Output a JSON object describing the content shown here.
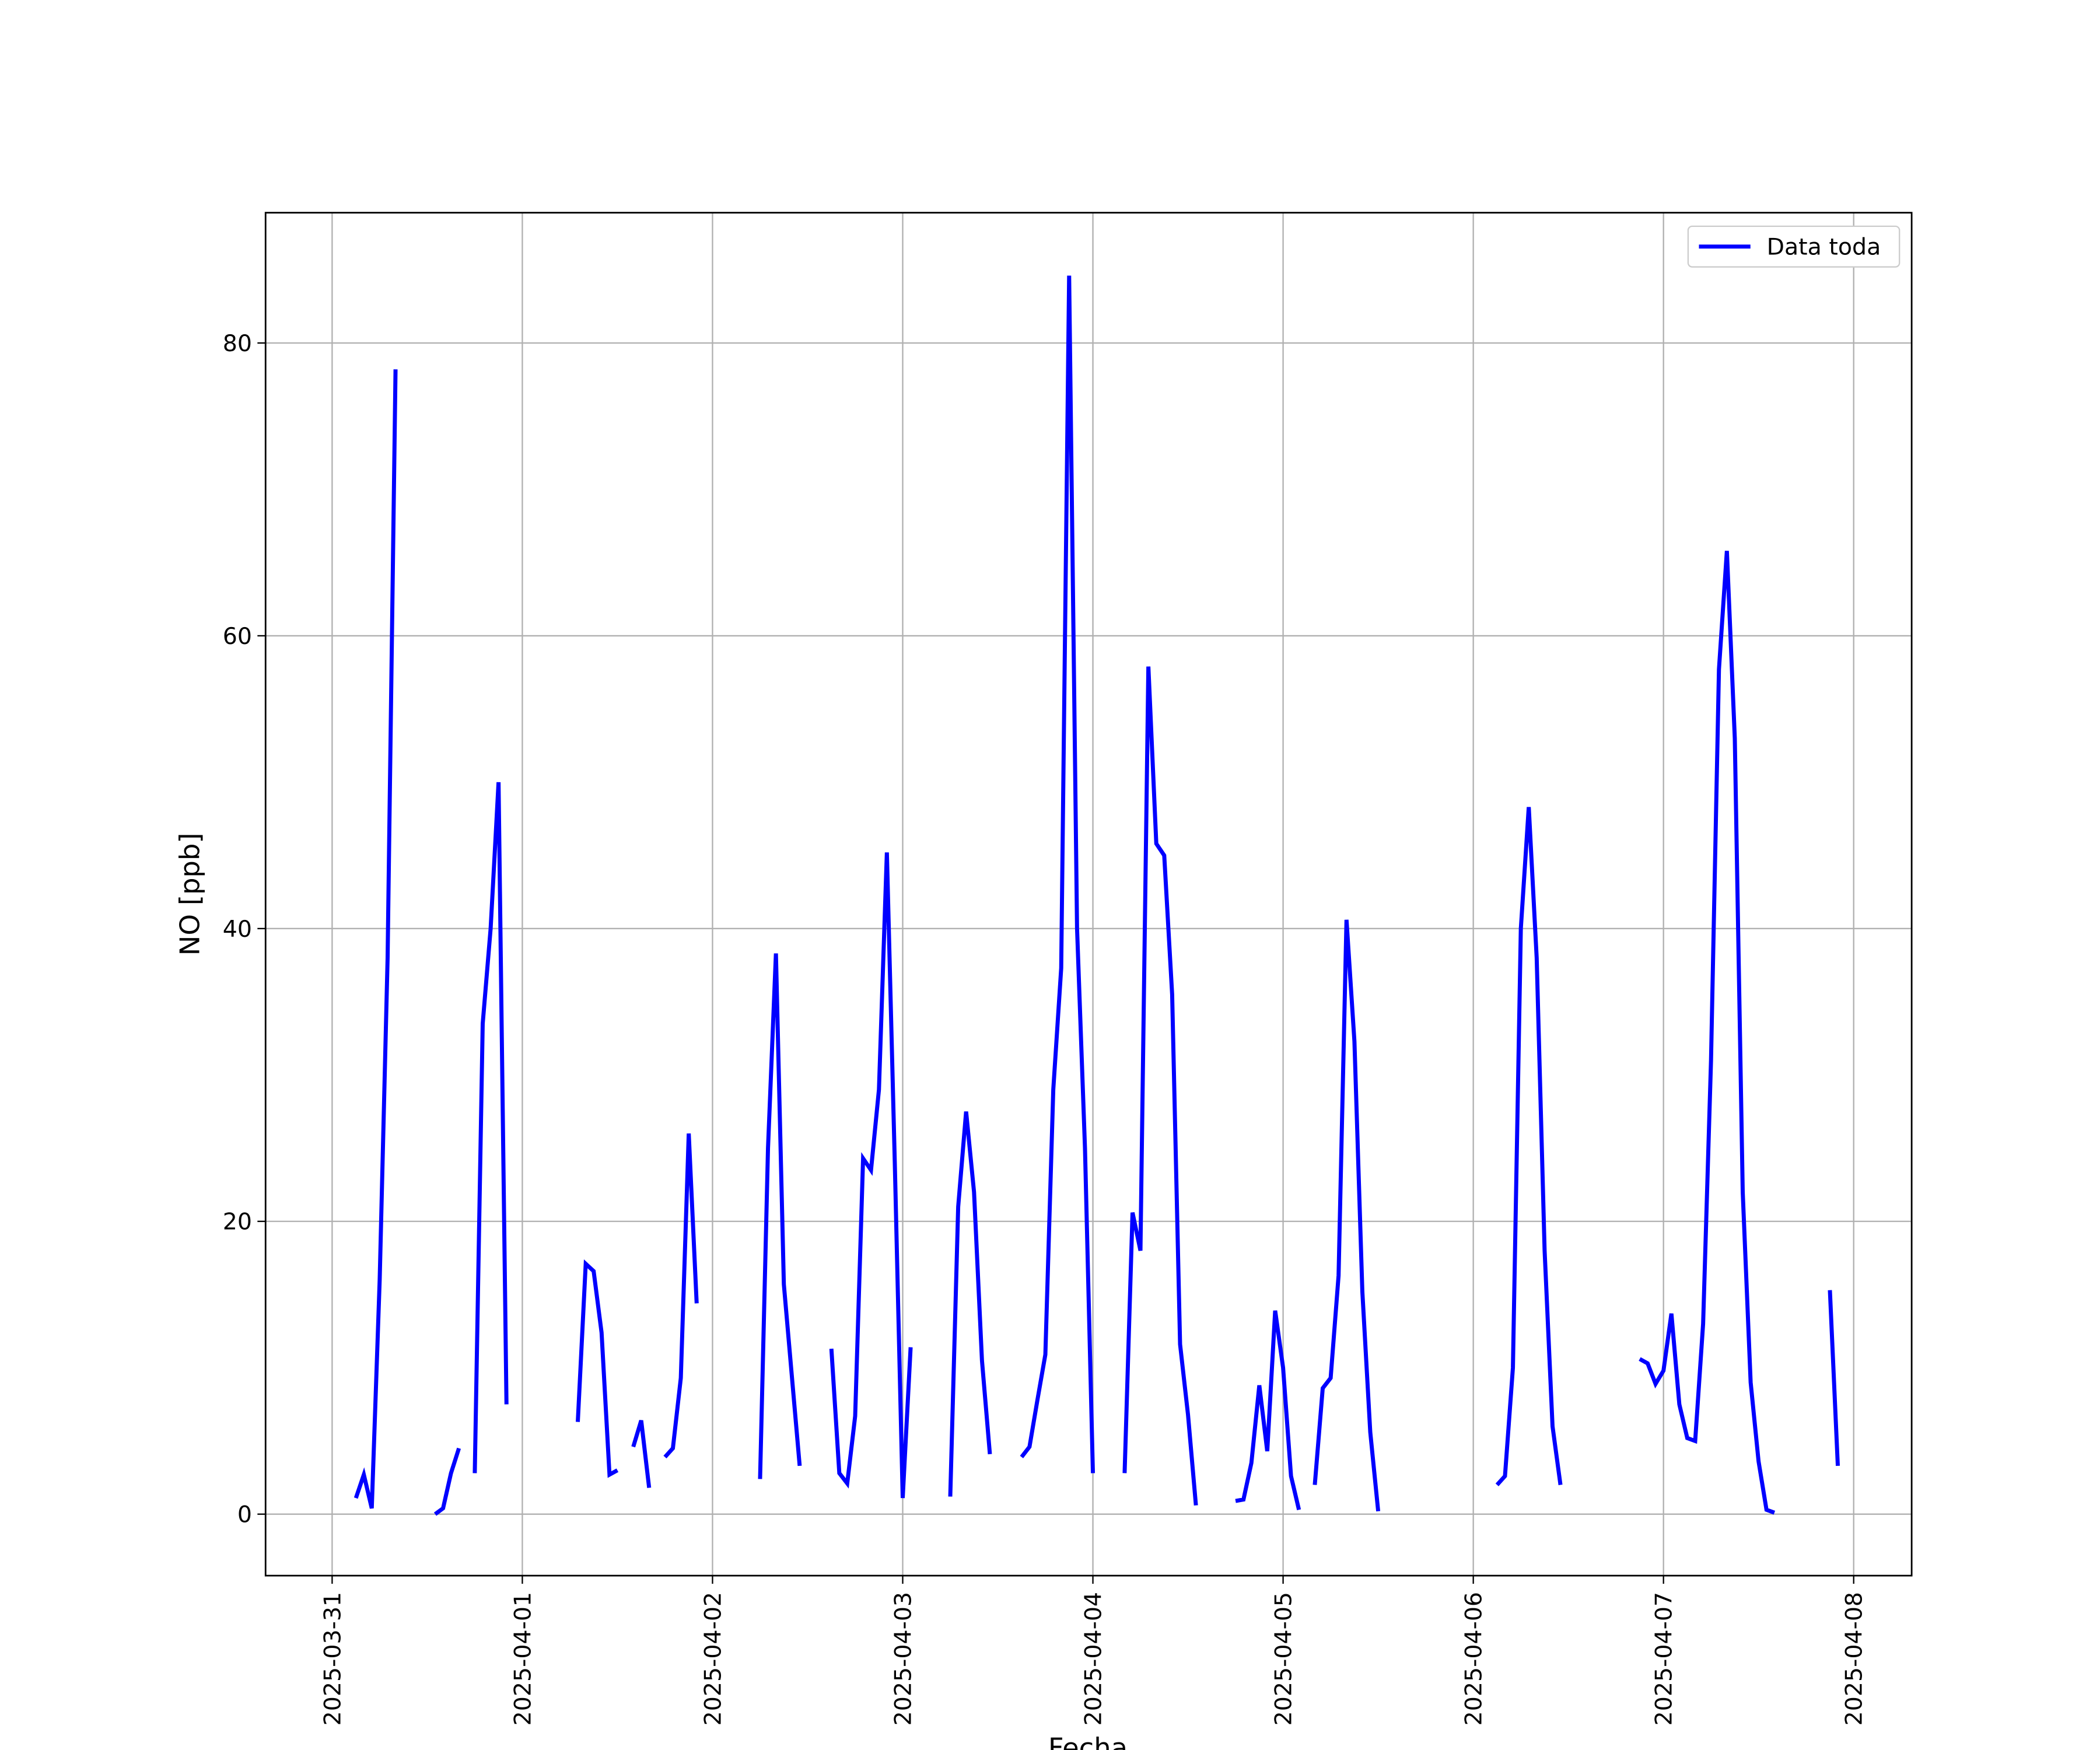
{
  "chart_data": {
    "type": "line",
    "xlabel": "Fecha",
    "ylabel": "NO [ppb]",
    "x": [
      "2025-03-31 03:00",
      "2025-03-31 04:00",
      "2025-03-31 05:00",
      "2025-03-31 06:00",
      "2025-03-31 07:00",
      "2025-03-31 08:00",
      "2025-03-31 09:00",
      "2025-03-31 13:00",
      "2025-03-31 14:00",
      "2025-03-31 15:00",
      "2025-03-31 16:00",
      "2025-03-31 17:00",
      "2025-03-31 18:00",
      "2025-03-31 19:00",
      "2025-03-31 20:00",
      "2025-03-31 21:00",
      "2025-03-31 22:00",
      "2025-03-31 23:00",
      "2025-04-01 07:00",
      "2025-04-01 08:00",
      "2025-04-01 09:00",
      "2025-04-01 10:00",
      "2025-04-01 11:00",
      "2025-04-01 12:00",
      "2025-04-01 13:00",
      "2025-04-01 14:00",
      "2025-04-01 15:00",
      "2025-04-01 16:00",
      "2025-04-01 17:00",
      "2025-04-01 18:00",
      "2025-04-01 19:00",
      "2025-04-01 20:00",
      "2025-04-01 21:00",
      "2025-04-01 22:00",
      "2025-04-01 23:00",
      "2025-04-02 06:00",
      "2025-04-02 07:00",
      "2025-04-02 08:00",
      "2025-04-02 09:00",
      "2025-04-02 10:00",
      "2025-04-02 11:00",
      "2025-04-02 12:00",
      "2025-04-02 15:00",
      "2025-04-02 16:00",
      "2025-04-02 17:00",
      "2025-04-02 18:00",
      "2025-04-02 19:00",
      "2025-04-02 20:00",
      "2025-04-02 21:00",
      "2025-04-02 22:00",
      "2025-04-02 23:00",
      "2025-04-03 00:00",
      "2025-04-03 01:00",
      "2025-04-03 02:00",
      "2025-04-03 06:00",
      "2025-04-03 07:00",
      "2025-04-03 08:00",
      "2025-04-03 09:00",
      "2025-04-03 10:00",
      "2025-04-03 11:00",
      "2025-04-03 12:00",
      "2025-04-03 15:00",
      "2025-04-03 16:00",
      "2025-04-03 17:00",
      "2025-04-03 18:00",
      "2025-04-03 19:00",
      "2025-04-03 20:00",
      "2025-04-03 21:00",
      "2025-04-03 22:00",
      "2025-04-03 23:00",
      "2025-04-04 00:00",
      "2025-04-04 01:00",
      "2025-04-04 04:00",
      "2025-04-04 05:00",
      "2025-04-04 06:00",
      "2025-04-04 07:00",
      "2025-04-04 08:00",
      "2025-04-04 09:00",
      "2025-04-04 10:00",
      "2025-04-04 11:00",
      "2025-04-04 12:00",
      "2025-04-04 13:00",
      "2025-04-04 14:00",
      "2025-04-04 18:00",
      "2025-04-04 19:00",
      "2025-04-04 20:00",
      "2025-04-04 21:00",
      "2025-04-04 22:00",
      "2025-04-04 23:00",
      "2025-04-05 00:00",
      "2025-04-05 01:00",
      "2025-04-05 02:00",
      "2025-04-05 03:00",
      "2025-04-05 04:00",
      "2025-04-05 05:00",
      "2025-04-05 06:00",
      "2025-04-05 07:00",
      "2025-04-05 08:00",
      "2025-04-05 09:00",
      "2025-04-05 10:00",
      "2025-04-05 11:00",
      "2025-04-05 12:00",
      "2025-04-05 13:00",
      "2025-04-06 03:00",
      "2025-04-06 04:00",
      "2025-04-06 05:00",
      "2025-04-06 06:00",
      "2025-04-06 07:00",
      "2025-04-06 08:00",
      "2025-04-06 09:00",
      "2025-04-06 10:00",
      "2025-04-06 11:00",
      "2025-04-06 12:00",
      "2025-04-06 21:00",
      "2025-04-06 22:00",
      "2025-04-06 23:00",
      "2025-04-07 00:00",
      "2025-04-07 01:00",
      "2025-04-07 02:00",
      "2025-04-07 03:00",
      "2025-04-07 04:00",
      "2025-04-07 05:00",
      "2025-04-07 06:00",
      "2025-04-07 07:00",
      "2025-04-07 08:00",
      "2025-04-07 09:00",
      "2025-04-07 10:00",
      "2025-04-07 11:00",
      "2025-04-07 12:00",
      "2025-04-07 13:00",
      "2025-04-07 14:00",
      "2025-04-07 15:00",
      "2025-04-07 21:00",
      "2025-04-07 22:00"
    ],
    "series": [
      {
        "name": "Data toda",
        "color": "#0000ff",
        "values": [
          1.1,
          2.7,
          0.4,
          16,
          38,
          78.2,
          null,
          0,
          0.4,
          2.8,
          4.5,
          null,
          2.8,
          33.5,
          40,
          50,
          7.5,
          null,
          6.3,
          17.1,
          16.6,
          12.4,
          2.7,
          3.0,
          null,
          4.6,
          6.4,
          1.8,
          null,
          3.9,
          4.5,
          9.3,
          26,
          14.4,
          null,
          2.4,
          25,
          38.3,
          15.7,
          9.5,
          3.3,
          null,
          11.3,
          2.8,
          2.1,
          6.7,
          24.3,
          23.5,
          29,
          45.2,
          24,
          1.1,
          11.4,
          null,
          1.2,
          21,
          27.5,
          22,
          10.5,
          4.1,
          null,
          3.9,
          4.6,
          7.8,
          10.9,
          29,
          37.3,
          84.6,
          40,
          25,
          2.8,
          null,
          2.8,
          20.6,
          18,
          57.9,
          45.8,
          45,
          35.5,
          11.6,
          6.8,
          0.6,
          null,
          0.9,
          1,
          3.5,
          8.8,
          4.3,
          13.9,
          10,
          2.6,
          0.3,
          null,
          2,
          8.6,
          9.3,
          16.3,
          40.6,
          32.3,
          15.2,
          5.6,
          0.2,
          null,
          2,
          2.6,
          10,
          40,
          48.3,
          38,
          18,
          6,
          2,
          null,
          10.6,
          10.3,
          8.9,
          9.8,
          13.7,
          7.5,
          5.2,
          5,
          13,
          31,
          57.7,
          65.8,
          53,
          22,
          9,
          3.6,
          0.3,
          0.1,
          null,
          15.3,
          3.3
        ]
      }
    ],
    "xlim": [
      "2025-03-30 15:36",
      "2025-04-08 07:19"
    ],
    "xticks": [
      "2025-03-31",
      "2025-04-01",
      "2025-04-02",
      "2025-04-03",
      "2025-04-04",
      "2025-04-05",
      "2025-04-06",
      "2025-04-07",
      "2025-04-08"
    ],
    "ylim": [
      -4.2,
      88.9
    ],
    "yticks": [
      0,
      20,
      40,
      60,
      80
    ],
    "grid": true,
    "legend": "upper right"
  }
}
